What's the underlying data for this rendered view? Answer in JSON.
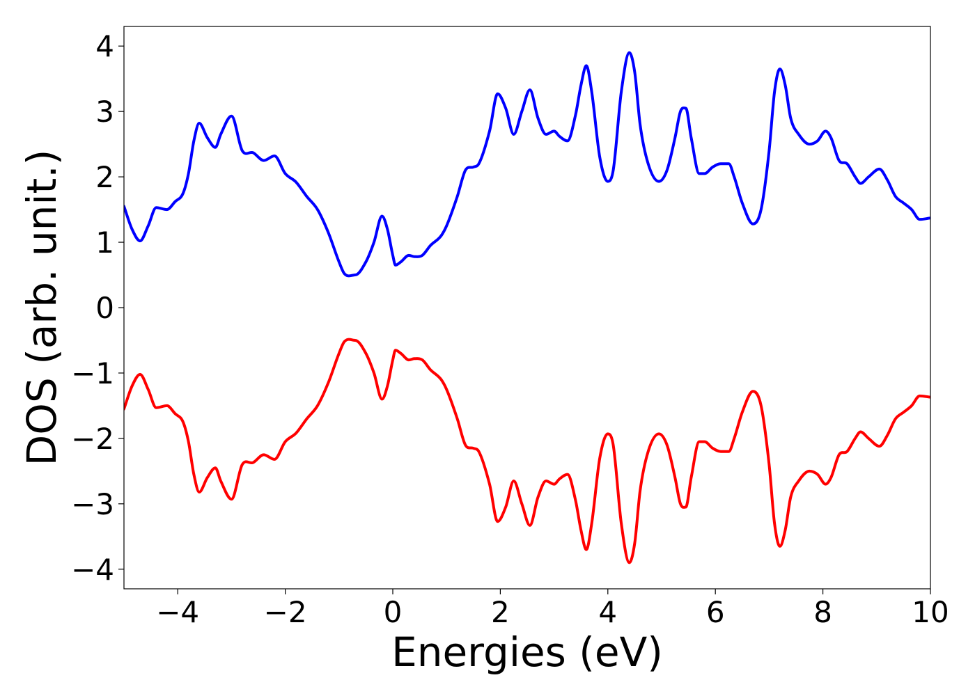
{
  "chart_data": {
    "type": "line",
    "title": "",
    "xlabel": "Energies (eV)",
    "ylabel": "DOS (arb. unit.)",
    "xlim": [
      -5,
      10
    ],
    "ylim": [
      -4.3,
      4.3
    ],
    "xticks": [
      -4,
      -2,
      0,
      2,
      4,
      6,
      8,
      10
    ],
    "yticks": [
      -4,
      -3,
      -2,
      -1,
      0,
      1,
      2,
      3,
      4
    ],
    "xtick_labels": [
      "−4",
      "−2",
      "0",
      "2",
      "4",
      "6",
      "8",
      "10"
    ],
    "ytick_labels": [
      "−4",
      "−3",
      "−2",
      "−1",
      "0",
      "1",
      "2",
      "3",
      "4"
    ],
    "grid": false,
    "legend": "none",
    "colors": {
      "spin_up": "#0000ff",
      "spin_down": "#ff0000",
      "axes": "#000000"
    },
    "x": [
      -5.0,
      -4.85,
      -4.7,
      -4.55,
      -4.4,
      -4.2,
      -4.05,
      -3.9,
      -3.8,
      -3.7,
      -3.6,
      -3.45,
      -3.3,
      -3.2,
      -3.0,
      -2.8,
      -2.6,
      -2.4,
      -2.2,
      -2.0,
      -1.8,
      -1.6,
      -1.4,
      -1.2,
      -1.0,
      -0.9,
      -0.7,
      -0.5,
      -0.35,
      -0.2,
      -0.1,
      0.0,
      0.05,
      0.15,
      0.3,
      0.4,
      0.55,
      0.7,
      0.9,
      1.0,
      1.2,
      1.35,
      1.5,
      1.6,
      1.8,
      1.95,
      2.1,
      2.25,
      2.4,
      2.55,
      2.7,
      2.85,
      3.0,
      3.1,
      3.25,
      3.4,
      3.5,
      3.6,
      3.7,
      3.85,
      4.0,
      4.1,
      4.25,
      4.4,
      4.5,
      4.6,
      4.75,
      4.95,
      5.1,
      5.25,
      5.35,
      5.45,
      5.55,
      5.7,
      5.8,
      5.95,
      6.1,
      6.25,
      6.35,
      6.5,
      6.7,
      6.85,
      7.0,
      7.1,
      7.2,
      7.3,
      7.4,
      7.55,
      7.75,
      7.9,
      8.05,
      8.15,
      8.3,
      8.45,
      8.6,
      8.7,
      8.85,
      9.05,
      9.2,
      9.35,
      9.5,
      9.65,
      9.8,
      10.0
    ],
    "series": [
      {
        "values": [
          1.55,
          1.2,
          1.02,
          1.25,
          1.53,
          1.5,
          1.62,
          1.75,
          2.05,
          2.55,
          2.82,
          2.6,
          2.45,
          2.65,
          2.93,
          2.4,
          2.37,
          2.25,
          2.32,
          2.05,
          1.92,
          1.7,
          1.5,
          1.15,
          0.7,
          0.52,
          0.5,
          0.7,
          1.0,
          1.4,
          1.2,
          0.8,
          0.65,
          0.7,
          0.8,
          0.78,
          0.8,
          0.95,
          1.1,
          1.25,
          1.7,
          2.1,
          2.15,
          2.2,
          2.7,
          3.27,
          3.05,
          2.65,
          3.0,
          3.33,
          2.9,
          2.65,
          2.7,
          2.62,
          2.55,
          2.95,
          3.4,
          3.7,
          3.3,
          2.3,
          1.93,
          2.1,
          3.3,
          3.9,
          3.6,
          2.8,
          2.2,
          1.93,
          2.1,
          2.6,
          3.0,
          3.05,
          2.6,
          2.05,
          2.05,
          2.15,
          2.2,
          2.2,
          2.0,
          1.6,
          1.28,
          1.5,
          2.4,
          3.3,
          3.65,
          3.4,
          2.9,
          2.65,
          2.5,
          2.55,
          2.7,
          2.6,
          2.25,
          2.2,
          2.0,
          1.9,
          2.0,
          2.12,
          1.95,
          1.7,
          1.6,
          1.5,
          1.35,
          1.37
        ]
      },
      {
        "values": [
          -1.55,
          -1.2,
          -1.02,
          -1.25,
          -1.53,
          -1.5,
          -1.62,
          -1.75,
          -2.05,
          -2.55,
          -2.82,
          -2.6,
          -2.45,
          -2.65,
          -2.93,
          -2.4,
          -2.37,
          -2.25,
          -2.32,
          -2.05,
          -1.92,
          -1.7,
          -1.5,
          -1.15,
          -0.7,
          -0.52,
          -0.5,
          -0.7,
          -1.0,
          -1.4,
          -1.2,
          -0.8,
          -0.65,
          -0.7,
          -0.8,
          -0.78,
          -0.8,
          -0.95,
          -1.1,
          -1.25,
          -1.7,
          -2.1,
          -2.15,
          -2.2,
          -2.7,
          -3.27,
          -3.05,
          -2.65,
          -3.0,
          -3.33,
          -2.9,
          -2.65,
          -2.7,
          -2.62,
          -2.55,
          -2.95,
          -3.4,
          -3.7,
          -3.3,
          -2.3,
          -1.93,
          -2.1,
          -3.3,
          -3.9,
          -3.6,
          -2.8,
          -2.2,
          -1.93,
          -2.1,
          -2.6,
          -3.0,
          -3.05,
          -2.6,
          -2.05,
          -2.05,
          -2.15,
          -2.2,
          -2.2,
          -2.0,
          -1.6,
          -1.28,
          -1.5,
          -2.4,
          -3.3,
          -3.65,
          -3.4,
          -2.9,
          -2.65,
          -2.5,
          -2.55,
          -2.7,
          -2.6,
          -2.25,
          -2.2,
          -2.0,
          -1.9,
          -2.0,
          -2.12,
          -1.95,
          -1.7,
          -1.6,
          -1.5,
          -1.35,
          -1.37
        ]
      }
    ]
  }
}
